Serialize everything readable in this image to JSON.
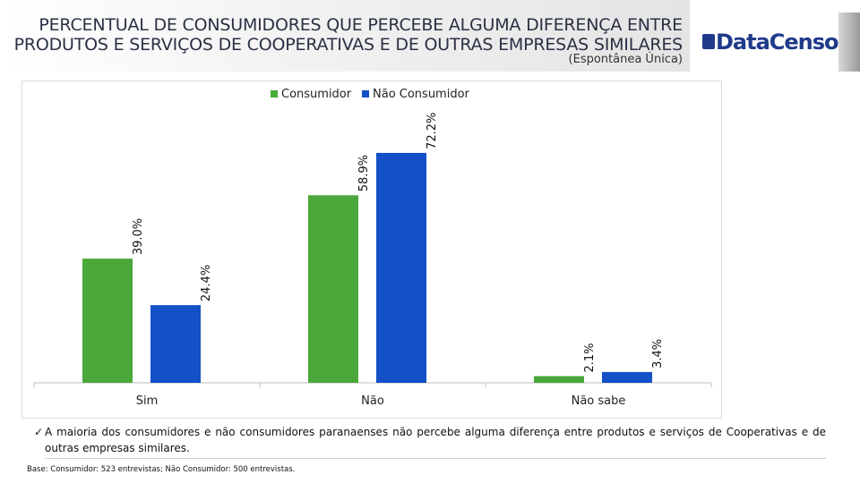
{
  "header": {
    "title_line1": "PERCENTUAL DE CONSUMIDORES QUE PERCEBE ALGUMA DIFERENÇA ENTRE",
    "title_line2": "PRODUTOS E SERVIÇOS DE COOPERATIVAS E DE OUTRAS EMPRESAS SIMILARES",
    "subtitle": "(Espontânea Única)",
    "logo_text": "DataCenso"
  },
  "chart_data": {
    "type": "bar",
    "title": "PERCENTUAL DE CONSUMIDORES QUE PERCEBE ALGUMA DIFERENÇA ENTRE PRODUTOS E SERVIÇOS DE COOPERATIVAS E DE OUTRAS EMPRESAS SIMILARES",
    "categories": [
      "Sim",
      "Não",
      "Não sabe"
    ],
    "series": [
      {
        "name": "Consumidor",
        "values": [
          39.0,
          58.9,
          2.1
        ],
        "labels": [
          "39.0%",
          "58.9%",
          "2.1%"
        ],
        "color": "#4aa83a"
      },
      {
        "name": "Não Consumidor",
        "values": [
          24.4,
          72.2,
          3.4
        ],
        "labels": [
          "24.4%",
          "72.2%",
          "3.4%"
        ],
        "color": "#1450c8"
      }
    ],
    "ylim": [
      0,
      100
    ],
    "grid": false,
    "legend": "top-center",
    "xlabel": "",
    "ylabel": ""
  },
  "footer": {
    "note_check": "✓",
    "note": "A maioria dos consumidores e não consumidores paranaenses não percebe alguma diferença entre produtos e serviços de Cooperativas e de outras empresas similares.",
    "base": "Base: Consumidor: 523 entrevistas; Não Consumidor: 500 entrevistas."
  }
}
